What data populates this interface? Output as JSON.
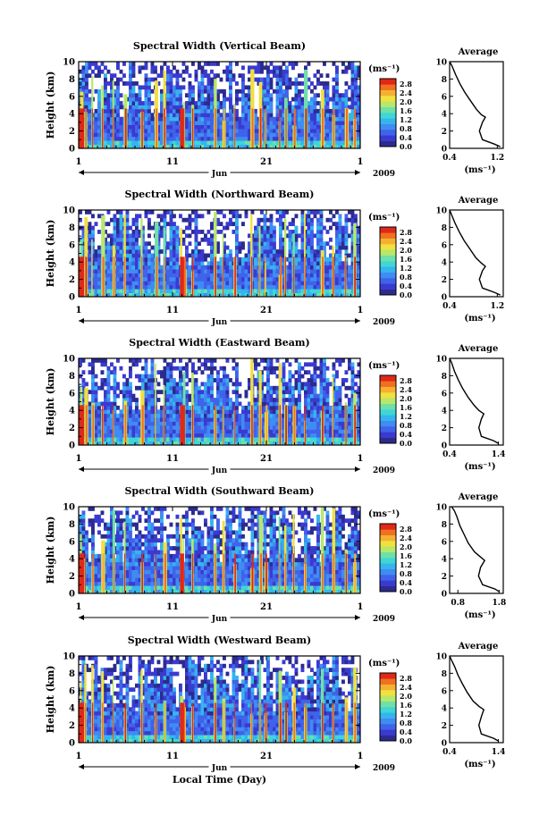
{
  "chart_data": [
    {
      "type": "heatmap",
      "title": "Spectral Width (Vertical Beam)",
      "ylabel": "Height (km)",
      "y_ticks": [
        "0",
        "2",
        "4",
        "6",
        "8",
        "10"
      ],
      "x_ticks": [
        "1",
        "11",
        "21",
        "1"
      ],
      "month": "Jun",
      "year": "2009",
      "colorbar_unit": "(ms⁻¹)",
      "colorbar_ticks": [
        "0.0",
        "0.4",
        "0.8",
        "1.2",
        "1.6",
        "2.0",
        "2.4",
        "2.8"
      ],
      "avg": {
        "title": "Average",
        "x_ticks": [
          "0.4",
          "1.2"
        ],
        "xlabel": "(ms⁻¹)",
        "xlim": [
          0.4,
          1.3
        ],
        "profile": [
          [
            1.25,
            0.2
          ],
          [
            1.15,
            0.5
          ],
          [
            0.95,
            1.0
          ],
          [
            0.9,
            2.0
          ],
          [
            0.95,
            3.0
          ],
          [
            1.0,
            3.6
          ],
          [
            0.93,
            3.9
          ],
          [
            0.85,
            4.5
          ],
          [
            0.75,
            5.5
          ],
          [
            0.65,
            6.5
          ],
          [
            0.57,
            7.5
          ],
          [
            0.5,
            8.5
          ],
          [
            0.44,
            9.5
          ],
          [
            0.4,
            10.0
          ]
        ]
      }
    },
    {
      "type": "heatmap",
      "title": "Spectral Width (Northward Beam)",
      "ylabel": "Height (km)",
      "y_ticks": [
        "0",
        "2",
        "4",
        "6",
        "8",
        "10"
      ],
      "x_ticks": [
        "1",
        "11",
        "21",
        "1"
      ],
      "month": "Jun",
      "year": "2009",
      "colorbar_unit": "(ms⁻¹)",
      "colorbar_ticks": [
        "0.0",
        "0.4",
        "0.8",
        "1.2",
        "1.6",
        "2.0",
        "2.4",
        "2.8"
      ],
      "avg": {
        "title": "Average",
        "x_ticks": [
          "0.4",
          "1.2"
        ],
        "xlabel": "(ms⁻¹)",
        "xlim": [
          0.4,
          1.3
        ],
        "profile": [
          [
            1.25,
            0.2
          ],
          [
            1.15,
            0.5
          ],
          [
            0.95,
            1.0
          ],
          [
            0.9,
            2.0
          ],
          [
            0.95,
            3.0
          ],
          [
            1.0,
            3.5
          ],
          [
            0.93,
            3.9
          ],
          [
            0.84,
            4.5
          ],
          [
            0.74,
            5.5
          ],
          [
            0.64,
            6.5
          ],
          [
            0.56,
            7.5
          ],
          [
            0.49,
            8.5
          ],
          [
            0.43,
            9.5
          ],
          [
            0.4,
            10.0
          ]
        ]
      }
    },
    {
      "type": "heatmap",
      "title": "Spectral Width (Eastward Beam)",
      "ylabel": "Height (km)",
      "y_ticks": [
        "0",
        "2",
        "4",
        "6",
        "8",
        "10"
      ],
      "x_ticks": [
        "1",
        "11",
        "21",
        "1"
      ],
      "month": "Jun",
      "year": "2009",
      "colorbar_unit": "(ms⁻¹)",
      "colorbar_ticks": [
        "0.0",
        "0.4",
        "0.8",
        "1.2",
        "1.6",
        "2.0",
        "2.4",
        "2.8"
      ],
      "avg": {
        "title": "Average",
        "x_ticks": [
          "0.4",
          "1.4"
        ],
        "xlabel": "(ms⁻¹)",
        "xlim": [
          0.4,
          1.5
        ],
        "profile": [
          [
            1.4,
            0.2
          ],
          [
            1.3,
            0.5
          ],
          [
            1.05,
            1.0
          ],
          [
            1.0,
            2.0
          ],
          [
            1.05,
            3.0
          ],
          [
            1.1,
            3.6
          ],
          [
            1.0,
            4.0
          ],
          [
            0.9,
            4.6
          ],
          [
            0.78,
            5.5
          ],
          [
            0.67,
            6.5
          ],
          [
            0.58,
            7.5
          ],
          [
            0.5,
            8.5
          ],
          [
            0.44,
            9.5
          ],
          [
            0.4,
            10.0
          ]
        ]
      }
    },
    {
      "type": "heatmap",
      "title": "Spectral Width (Southward Beam)",
      "ylabel": "Height (km)",
      "y_ticks": [
        "0",
        "2",
        "4",
        "6",
        "8",
        "10"
      ],
      "x_ticks": [
        "1",
        "11",
        "21",
        "1"
      ],
      "month": "Jun",
      "year": "2009",
      "colorbar_unit": "(ms⁻¹)",
      "colorbar_ticks": [
        "0.0",
        "0.4",
        "0.8",
        "1.2",
        "1.6",
        "2.0",
        "2.4",
        "2.8"
      ],
      "avg": {
        "title": "Average",
        "x_ticks": [
          "0.8",
          "1.8"
        ],
        "xlabel": "(ms⁻¹)",
        "xlim": [
          0.6,
          1.9
        ],
        "profile": [
          [
            1.8,
            0.2
          ],
          [
            1.7,
            0.5
          ],
          [
            1.4,
            1.0
          ],
          [
            1.3,
            2.0
          ],
          [
            1.35,
            3.0
          ],
          [
            1.45,
            3.8
          ],
          [
            1.35,
            4.2
          ],
          [
            1.2,
            4.8
          ],
          [
            1.05,
            5.8
          ],
          [
            0.95,
            6.8
          ],
          [
            0.85,
            7.8
          ],
          [
            0.78,
            8.8
          ],
          [
            0.72,
            9.5
          ],
          [
            0.65,
            10.0
          ]
        ]
      }
    },
    {
      "type": "heatmap",
      "title": "Spectral Width (Westward Beam)",
      "ylabel": "Height (km)",
      "y_ticks": [
        "0",
        "2",
        "4",
        "6",
        "8",
        "10"
      ],
      "x_ticks": [
        "1",
        "11",
        "21",
        "1"
      ],
      "month": "Jun",
      "year": "2009",
      "colorbar_unit": "(ms⁻¹)",
      "colorbar_ticks": [
        "0.0",
        "0.4",
        "0.8",
        "1.2",
        "1.6",
        "2.0",
        "2.4",
        "2.8"
      ],
      "xlabel": "Local Time (Day)",
      "avg": {
        "title": "Average",
        "x_ticks": [
          "0.4",
          "1.4"
        ],
        "xlabel": "(ms⁻¹)",
        "xlim": [
          0.4,
          1.5
        ],
        "profile": [
          [
            1.4,
            0.2
          ],
          [
            1.3,
            0.5
          ],
          [
            1.05,
            1.0
          ],
          [
            1.0,
            2.0
          ],
          [
            1.05,
            3.0
          ],
          [
            1.1,
            3.8
          ],
          [
            1.0,
            4.2
          ],
          [
            0.88,
            4.8
          ],
          [
            0.76,
            5.8
          ],
          [
            0.66,
            6.8
          ],
          [
            0.57,
            7.8
          ],
          [
            0.5,
            8.8
          ],
          [
            0.44,
            9.5
          ],
          [
            0.4,
            10.0
          ]
        ]
      }
    }
  ]
}
